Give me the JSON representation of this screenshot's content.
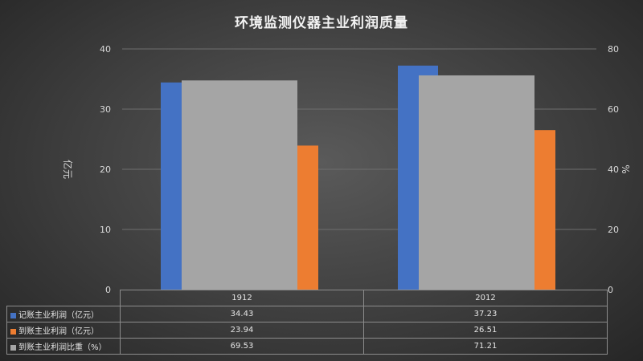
{
  "chart_data": {
    "type": "bar",
    "title": "环境监测仪器主业利润质量",
    "categories": [
      "1912",
      "2012"
    ],
    "ylabel_left": "亿元",
    "ylabel_right": "%",
    "ylim_left": [
      0,
      40
    ],
    "ylim_right": [
      0,
      80
    ],
    "yticks_left": [
      "0",
      "10",
      "20",
      "30",
      "40"
    ],
    "yticks_right": [
      "0",
      "20",
      "40",
      "60",
      "80"
    ],
    "grid": true,
    "legend": "data-table",
    "series": [
      {
        "name": "记账主业利润（亿元）",
        "axis": "left",
        "color": "#4472c4",
        "values": [
          34.43,
          37.23
        ],
        "labels": [
          "34.43",
          "37.23"
        ]
      },
      {
        "name": "到账主业利润（亿元）",
        "axis": "left",
        "color": "#ed7d31",
        "values": [
          23.94,
          26.51
        ],
        "labels": [
          "23.94",
          "26.51"
        ]
      },
      {
        "name": "到账主业利润比重（%）",
        "axis": "right",
        "color": "#a5a5a5",
        "values": [
          69.53,
          71.21
        ],
        "labels": [
          "69.53",
          "71.21"
        ]
      }
    ]
  }
}
